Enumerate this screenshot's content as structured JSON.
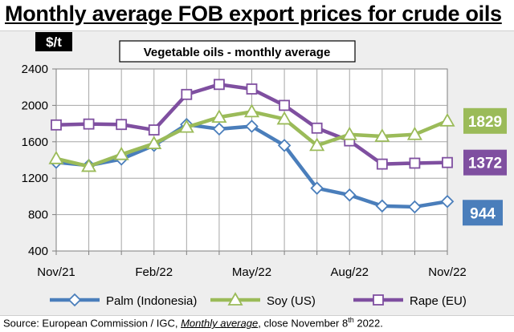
{
  "title": "Monthly average FOB export prices for crude oils",
  "chart_data": {
    "type": "line",
    "subtitle": "Vegetable oils - monthly average",
    "unit_label": "$/t",
    "x": [
      "Nov/21",
      "Dec/21",
      "Jan/22",
      "Feb/22",
      "Mar/22",
      "Apr/22",
      "May/22",
      "Jun/22",
      "Jul/22",
      "Aug/22",
      "Sep/22",
      "Oct/22",
      "Nov/22"
    ],
    "x_tick_labels": [
      "Nov/21",
      "Feb/22",
      "May/22",
      "Aug/22",
      "Nov/22"
    ],
    "ylim": [
      400,
      2400
    ],
    "y_ticks": [
      400,
      800,
      1200,
      1600,
      2000,
      2400
    ],
    "grid": true,
    "legend_position": "bottom",
    "series": [
      {
        "name": "Palm (Indonesia)",
        "color": "#4a7ebb",
        "marker": "diamond",
        "values": [
          1375,
          1340,
          1410,
          1560,
          1790,
          1740,
          1770,
          1560,
          1090,
          1015,
          895,
          885,
          944
        ],
        "end_label": "944"
      },
      {
        "name": "Soy (US)",
        "color": "#9bbb59",
        "marker": "triangle",
        "values": [
          1415,
          1330,
          1460,
          1580,
          1760,
          1870,
          1930,
          1850,
          1560,
          1680,
          1660,
          1680,
          1829
        ],
        "end_label": "1829"
      },
      {
        "name": "Rape (EU)",
        "color": "#7f4fa0",
        "marker": "square",
        "values": [
          1785,
          1795,
          1790,
          1730,
          2120,
          2230,
          2180,
          2000,
          1750,
          1610,
          1355,
          1365,
          1372
        ],
        "end_label": "1372"
      }
    ]
  },
  "source": {
    "prefix": "Source: European Commission / IGC, ",
    "link": "Monthly average",
    "suffix_before_sup": ", close November 8",
    "sup": "th",
    "suffix_end": " 2022."
  }
}
